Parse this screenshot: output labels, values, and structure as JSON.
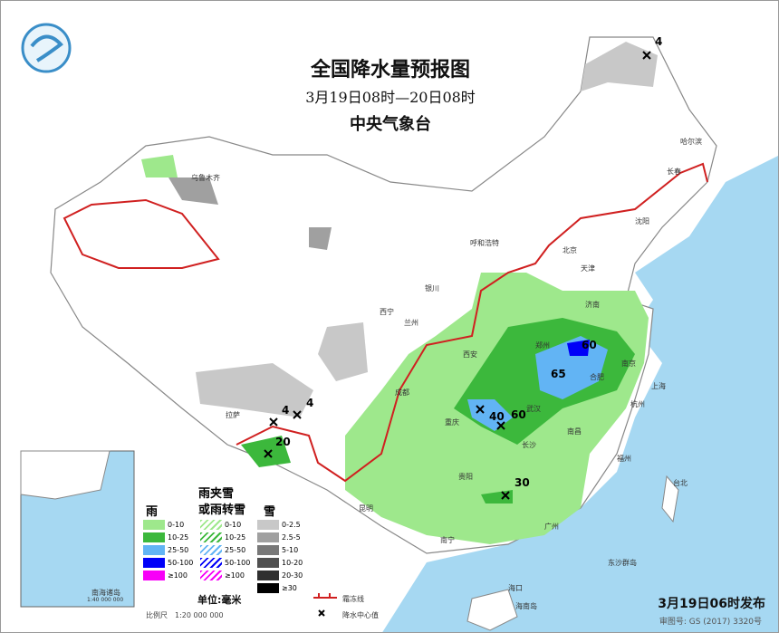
{
  "header": {
    "title": "全国降水量预报图",
    "period": "3月19日08时—20日08时",
    "agency": "中央气象台"
  },
  "footer": {
    "issued": "3月19日06时发布",
    "review_no": "审图号: GS (2017) 3320号"
  },
  "legend": {
    "rain_title": "雨",
    "mix_title_1": "雨夹雪",
    "mix_title_2": "或雨转雪",
    "snow_title": "雪",
    "rain": [
      {
        "label": "0-10",
        "color": "#9ee88c"
      },
      {
        "label": "10-25",
        "color": "#3cb83c"
      },
      {
        "label": "25-50",
        "color": "#62b4f4"
      },
      {
        "label": "50-100",
        "color": "#0000f8"
      },
      {
        "label": "≥100",
        "color": "#f800f8"
      }
    ],
    "mix": [
      {
        "label": "0-10",
        "color": "#9ee88c"
      },
      {
        "label": "10-25",
        "color": "#3cb83c"
      },
      {
        "label": "25-50",
        "color": "#62b4f4"
      },
      {
        "label": "50-100",
        "color": "#0000f8"
      },
      {
        "label": "≥100",
        "color": "#f800f8"
      }
    ],
    "snow": [
      {
        "label": "0-2.5",
        "color": "#c8c8c8"
      },
      {
        "label": "2.5-5",
        "color": "#a0a0a0"
      },
      {
        "label": "5-10",
        "color": "#787878"
      },
      {
        "label": "10-20",
        "color": "#505050"
      },
      {
        "label": "20-30",
        "color": "#303030"
      },
      {
        "label": "≥30",
        "color": "#000000"
      }
    ],
    "unit": "单位:毫米",
    "scale": "比例尺　1:20 000 000",
    "frost_line": "霜冻线",
    "center_value": "降水中心值"
  },
  "inset": {
    "label": "南海诸岛",
    "scale": "1:40 000 000"
  },
  "center_values": [
    "4",
    "4",
    "4",
    "20",
    "40",
    "60",
    "60",
    "65",
    "30"
  ],
  "cities": [
    "乌鲁木齐",
    "拉萨",
    "西宁",
    "兰州",
    "银川",
    "呼和浩特",
    "北京",
    "天津",
    "沈阳",
    "长春",
    "哈尔滨",
    "济南",
    "郑州",
    "西安",
    "成都",
    "重庆",
    "武汉",
    "合肥",
    "南京",
    "上海",
    "杭州",
    "长沙",
    "南昌",
    "贵阳",
    "昆明",
    "南宁",
    "广州",
    "福州",
    "台北",
    "海口",
    "海南岛",
    "东沙群岛"
  ],
  "colors": {
    "sea": "#a6d8f2",
    "land": "#ffffff",
    "frost_line": "#d02020",
    "border": "#888888"
  }
}
